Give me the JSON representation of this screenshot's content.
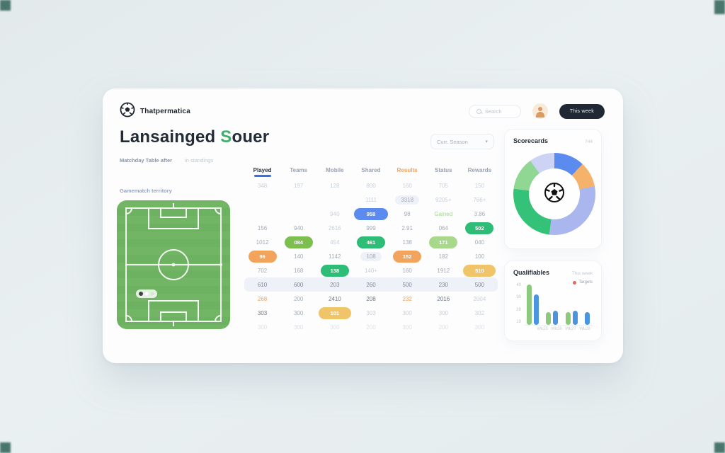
{
  "colors": {
    "accent_blue": "#5b8bef",
    "accent_green": "#2ebd77",
    "accent_orange": "#f2a45c",
    "accent_amber": "#f0c468",
    "olive_green": "#7cbf4f",
    "light_green": "#a8d98a",
    "dark_button": "#1f2834",
    "corner_marker": "#2d6156"
  },
  "header": {
    "brand": "Thatpermatica",
    "search_placeholder": "Search",
    "action_button": "This week"
  },
  "page": {
    "title_main": "Lansainged ",
    "title_accent": "S",
    "title_rest": "ouer",
    "subtitle_primary": "Matchday Table after",
    "subtitle_secondary": "in standings",
    "season_select": "Curr. Season",
    "season_chevron": "▾"
  },
  "field": {
    "label": "Gamematch territory"
  },
  "table": {
    "columns": [
      {
        "label": "Played",
        "variant": "active"
      },
      {
        "label": "Teams",
        "variant": ""
      },
      {
        "label": "Mobile",
        "variant": ""
      },
      {
        "label": "Shared",
        "variant": ""
      },
      {
        "label": "Results",
        "variant": "orange"
      },
      {
        "label": "Status",
        "variant": ""
      },
      {
        "label": "Rewards",
        "variant": ""
      }
    ],
    "rows": [
      {
        "cells": [
          {
            "t": "348",
            "s": "faint"
          },
          {
            "t": "197",
            "s": "faint"
          },
          {
            "t": "128",
            "s": "faint"
          },
          {
            "t": "800",
            "s": "faint"
          },
          {
            "t": "160",
            "s": "faint"
          },
          {
            "t": "705",
            "s": "faint"
          },
          {
            "t": "150",
            "s": "faint"
          }
        ]
      },
      {
        "cells": [
          {
            "t": "",
            "s": ""
          },
          {
            "t": "",
            "s": ""
          },
          {
            "t": "",
            "s": ""
          },
          {
            "t": "1111",
            "s": "faint"
          },
          {
            "t": "3318",
            "s": "bg"
          },
          {
            "t": "9205+",
            "s": "faint"
          },
          {
            "t": "766+",
            "s": "faint"
          }
        ]
      },
      {
        "cells": [
          {
            "t": "",
            "s": ""
          },
          {
            "t": "",
            "s": ""
          },
          {
            "t": "940",
            "s": "faint"
          },
          {
            "t": "958",
            "s": "pblue"
          },
          {
            "t": "98",
            "s": ""
          },
          {
            "t": "Gained",
            "s": "greentxt"
          },
          {
            "t": "3.86",
            "s": ""
          }
        ]
      },
      {
        "cells": [
          {
            "t": "156",
            "s": ""
          },
          {
            "t": "940",
            "s": ""
          },
          {
            "t": "2616",
            "s": "faint"
          },
          {
            "t": "999",
            "s": ""
          },
          {
            "t": "2.91",
            "s": ""
          },
          {
            "t": "064",
            "s": ""
          },
          {
            "t": "502",
            "s": "pgreen"
          }
        ]
      },
      {
        "cells": [
          {
            "t": "1012",
            "s": ""
          },
          {
            "t": "084",
            "s": "polive"
          },
          {
            "t": "454",
            "s": "faint"
          },
          {
            "t": "461",
            "s": "pgreen"
          },
          {
            "t": "138",
            "s": ""
          },
          {
            "t": "171",
            "s": "plgreen"
          },
          {
            "t": "040",
            "s": ""
          }
        ]
      },
      {
        "cells": [
          {
            "t": "96",
            "s": "porange"
          },
          {
            "t": "140",
            "s": ""
          },
          {
            "t": "1142",
            "s": ""
          },
          {
            "t": "108",
            "s": "bg"
          },
          {
            "t": "152",
            "s": "porange"
          },
          {
            "t": "182",
            "s": ""
          },
          {
            "t": "100",
            "s": ""
          }
        ]
      },
      {
        "cells": [
          {
            "t": "702",
            "s": ""
          },
          {
            "t": "168",
            "s": ""
          },
          {
            "t": "138",
            "s": "pgreen"
          },
          {
            "t": "140+",
            "s": "faint"
          },
          {
            "t": "160",
            "s": ""
          },
          {
            "t": "1912",
            "s": ""
          },
          {
            "t": "510",
            "s": "pamber"
          }
        ]
      },
      {
        "striped": true,
        "cells": [
          {
            "t": "610",
            "s": ""
          },
          {
            "t": "600",
            "s": ""
          },
          {
            "t": "203",
            "s": ""
          },
          {
            "t": "260",
            "s": ""
          },
          {
            "t": "500",
            "s": ""
          },
          {
            "t": "230",
            "s": "dark"
          },
          {
            "t": "500",
            "s": ""
          }
        ]
      },
      {
        "cells": [
          {
            "t": "268",
            "s": "orangetxt"
          },
          {
            "t": "200",
            "s": ""
          },
          {
            "t": "2410",
            "s": "dark"
          },
          {
            "t": "208",
            "s": "dark"
          },
          {
            "t": "232",
            "s": "orangetxt"
          },
          {
            "t": "2016",
            "s": "dark"
          },
          {
            "t": "2004",
            "s": "faint"
          }
        ]
      },
      {
        "cells": [
          {
            "t": "303",
            "s": "dark"
          },
          {
            "t": "300",
            "s": ""
          },
          {
            "t": "101",
            "s": "pamber"
          },
          {
            "t": "303",
            "s": "faint"
          },
          {
            "t": "300",
            "s": "faint"
          },
          {
            "t": "300",
            "s": "faint"
          },
          {
            "t": "302",
            "s": "faint"
          }
        ]
      },
      {
        "faded": true,
        "cells": [
          {
            "t": "300",
            "s": ""
          },
          {
            "t": "300",
            "s": ""
          },
          {
            "t": "300",
            "s": ""
          },
          {
            "t": "200",
            "s": ""
          },
          {
            "t": "300",
            "s": ""
          },
          {
            "t": "200",
            "s": ""
          },
          {
            "t": "300",
            "s": ""
          }
        ]
      }
    ]
  },
  "donut_card": {
    "title": "Scorecards",
    "meta": "744",
    "center_icon": "soccer-ball-icon"
  },
  "bar_card": {
    "title": "Qualifiables",
    "meta": "This week",
    "legend": "Targets"
  },
  "chart_data": [
    {
      "type": "pie",
      "title": "Scorecards",
      "style": "donut",
      "legend_position": "none",
      "segments": [
        {
          "name": "blue",
          "color": "#5b8bef",
          "value": 12
        },
        {
          "name": "orange",
          "color": "#f5b26b",
          "value": 10
        },
        {
          "name": "periwinkle",
          "color": "#a9b7ee",
          "value": 30
        },
        {
          "name": "green",
          "color": "#34c279",
          "value": 25
        },
        {
          "name": "light-green",
          "color": "#8fd793",
          "value": 13
        },
        {
          "name": "lavender",
          "color": "#ccd3f4",
          "value": 10
        }
      ]
    },
    {
      "type": "bar",
      "title": "Qualifiables",
      "categories": [
        "Wk25",
        "Wk26",
        "Wk27",
        "Wk28"
      ],
      "series": [
        {
          "name": "green",
          "color": "#8cc97e",
          "values": [
            42,
            13,
            13,
            0
          ]
        },
        {
          "name": "blue",
          "color": "#4b94e0",
          "values": [
            32,
            15,
            15,
            13
          ]
        }
      ],
      "yticks": [
        40,
        30,
        20,
        10
      ],
      "ylim": [
        0,
        45
      ],
      "legend": [
        {
          "label": "Targets",
          "color": "#e8684e"
        }
      ],
      "legend_position": "top-right",
      "grid": false
    }
  ]
}
